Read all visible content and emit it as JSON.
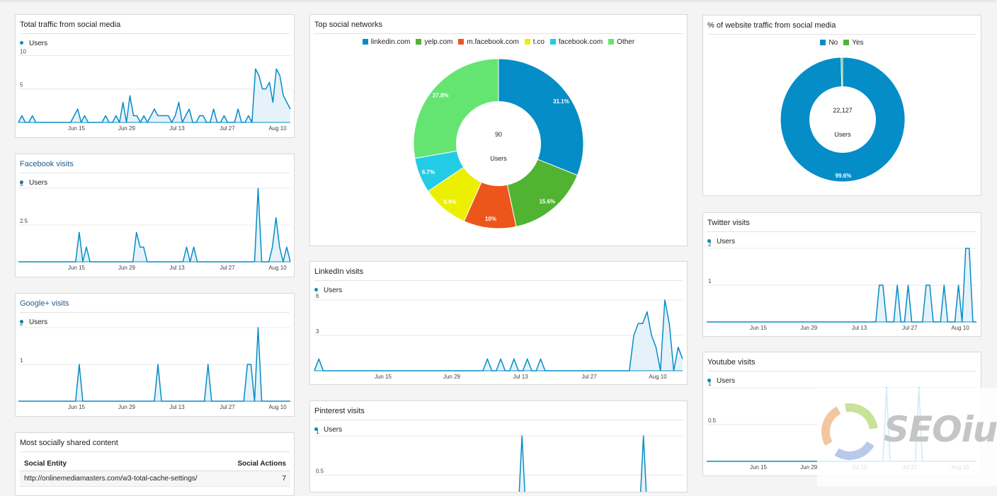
{
  "dashboard": {
    "widgets": {
      "total_traffic": {
        "title": "Total traffic from social media",
        "legend": "Users"
      },
      "facebook": {
        "title": "Facebook visits",
        "legend": "Users"
      },
      "googleplus": {
        "title": "Google+ visits",
        "legend": "Users"
      },
      "shared": {
        "title": "Most socially shared content",
        "col_entity": "Social Entity",
        "col_actions": "Social Actions",
        "rows": [
          {
            "entity": "http://onlinemediamasters.com/w3-total-cache-settings/",
            "actions": "7"
          }
        ]
      },
      "top_networks": {
        "title": "Top social networks"
      },
      "linkedin": {
        "title": "LinkedIn visits",
        "legend": "Users"
      },
      "pinterest": {
        "title": "Pinterest visits",
        "legend": "Users"
      },
      "pct_social": {
        "title": "% of website traffic from social media"
      },
      "twitter": {
        "title": "Twitter visits",
        "legend": "Users"
      },
      "youtube": {
        "title": "Youtube visits",
        "legend": "Users"
      }
    },
    "watermark": {
      "text": "SEOium"
    },
    "colors": {
      "line": "#058dc7",
      "fill": "#e6f2f9",
      "grid": "#e8e8e8"
    }
  },
  "chart_data": [
    {
      "id": "total_traffic",
      "type": "area",
      "title": "Total traffic from social media",
      "xlabels": [
        "Jun 15",
        "Jun 29",
        "Jul 13",
        "Jul 27",
        "Aug 10"
      ],
      "yticks": [
        "10",
        "5"
      ],
      "ylim": [
        0,
        11
      ],
      "series": [
        {
          "name": "Users",
          "values": [
            0,
            1,
            0,
            0,
            1,
            0,
            0,
            0,
            0,
            0,
            0,
            0,
            0,
            0,
            0,
            0,
            1,
            2,
            0,
            1,
            0,
            0,
            0,
            0,
            0,
            1,
            0,
            0,
            1,
            0,
            3,
            0,
            4,
            1,
            1,
            0,
            1,
            0,
            1,
            2,
            1,
            1,
            1,
            1,
            0,
            1,
            3,
            0,
            1,
            2,
            0,
            0,
            1,
            1,
            0,
            0,
            2,
            0,
            0,
            1,
            0,
            0,
            0,
            2,
            0,
            0,
            1,
            0,
            8,
            7,
            5,
            5,
            6,
            3,
            8,
            7,
            4,
            3,
            2
          ]
        }
      ]
    },
    {
      "id": "facebook",
      "type": "area",
      "title": "Facebook visits",
      "xlabels": [
        "Jun 15",
        "Jun 29",
        "Jul 13",
        "Jul 27",
        "Aug 10"
      ],
      "yticks": [
        "5",
        "2.5"
      ],
      "ylim": [
        0,
        5
      ],
      "series": [
        {
          "name": "Users",
          "values": [
            0,
            0,
            0,
            0,
            0,
            0,
            0,
            0,
            0,
            0,
            0,
            0,
            0,
            0,
            0,
            0,
            0,
            2,
            0,
            1,
            0,
            0,
            0,
            0,
            0,
            0,
            0,
            0,
            0,
            0,
            0,
            0,
            0,
            2,
            1,
            1,
            0,
            0,
            0,
            0,
            0,
            0,
            0,
            0,
            0,
            0,
            0,
            1,
            0,
            1,
            0,
            0,
            0,
            0,
            0,
            0,
            0,
            0,
            0,
            0,
            0,
            0,
            0,
            0,
            0,
            0,
            0,
            5,
            0,
            0,
            0,
            1,
            3,
            1,
            0,
            1,
            0
          ]
        }
      ]
    },
    {
      "id": "googleplus",
      "type": "area",
      "title": "Google+ visits",
      "xlabels": [
        "Jun 15",
        "Jun 29",
        "Jul 13",
        "Jul 27",
        "Aug 10"
      ],
      "yticks": [
        "2",
        "1"
      ],
      "ylim": [
        0,
        2
      ],
      "series": [
        {
          "name": "Users",
          "values": [
            0,
            0,
            0,
            0,
            0,
            0,
            0,
            0,
            0,
            0,
            0,
            0,
            0,
            0,
            0,
            0,
            0,
            1,
            0,
            0,
            0,
            0,
            0,
            0,
            0,
            0,
            0,
            0,
            0,
            0,
            0,
            0,
            0,
            0,
            0,
            0,
            0,
            0,
            0,
            1,
            0,
            0,
            0,
            0,
            0,
            0,
            0,
            0,
            0,
            0,
            0,
            0,
            0,
            1,
            0,
            0,
            0,
            0,
            0,
            0,
            0,
            0,
            0,
            0,
            1,
            1,
            0,
            2,
            0,
            0,
            0,
            0,
            0,
            0,
            0,
            0,
            0
          ]
        }
      ]
    },
    {
      "id": "linkedin",
      "type": "area",
      "title": "LinkedIn visits",
      "xlabels": [
        "Jun 15",
        "Jun 29",
        "Jul 13",
        "Jul 27",
        "Aug 10"
      ],
      "yticks": [
        "6",
        "3"
      ],
      "ylim": [
        0,
        6
      ],
      "series": [
        {
          "name": "Users",
          "values": [
            0,
            1,
            0,
            0,
            0,
            0,
            0,
            0,
            0,
            0,
            0,
            0,
            0,
            0,
            0,
            0,
            0,
            0,
            0,
            0,
            0,
            0,
            0,
            0,
            0,
            0,
            0,
            0,
            0,
            0,
            0,
            0,
            0,
            0,
            0,
            0,
            0,
            0,
            0,
            1,
            0,
            0,
            1,
            0,
            0,
            1,
            0,
            0,
            1,
            0,
            0,
            1,
            0,
            0,
            0,
            0,
            0,
            0,
            0,
            0,
            0,
            0,
            0,
            0,
            0,
            0,
            0,
            0,
            0,
            0,
            0,
            0,
            3,
            4,
            4,
            5,
            3,
            2,
            0,
            6,
            4,
            0,
            2,
            1
          ]
        }
      ]
    },
    {
      "id": "pinterest",
      "type": "area",
      "title": "Pinterest visits",
      "xlabels": [],
      "yticks": [
        "1",
        "0.5"
      ],
      "ylim": [
        0,
        1
      ],
      "series": [
        {
          "name": "Users",
          "values": [
            0,
            0,
            0,
            0,
            0,
            0,
            0,
            0,
            0,
            0,
            0,
            0,
            0,
            0,
            0,
            0,
            0,
            0,
            0,
            0,
            0,
            0,
            0,
            0,
            0,
            0,
            0,
            0,
            0,
            0,
            0,
            0,
            0,
            0,
            0,
            0,
            0,
            0,
            0,
            0,
            0,
            0,
            0,
            0,
            0,
            0,
            0,
            0,
            0,
            0,
            0,
            0,
            0,
            1,
            0,
            0,
            0,
            0,
            0,
            0,
            0,
            0,
            0,
            0,
            0,
            0,
            0,
            0,
            0,
            0,
            0,
            0,
            0,
            0,
            0,
            0,
            0,
            0,
            0,
            0,
            0,
            0,
            0,
            0,
            1,
            0,
            0,
            0,
            0,
            0,
            0,
            0,
            0,
            0,
            0
          ]
        }
      ]
    },
    {
      "id": "twitter",
      "type": "area",
      "title": "Twitter visits",
      "xlabels": [
        "Jun 15",
        "Jun 29",
        "Jul 13",
        "Jul 27",
        "Aug 10"
      ],
      "yticks": [
        "2",
        "1"
      ],
      "ylim": [
        0,
        2
      ],
      "series": [
        {
          "name": "Users",
          "values": [
            0,
            0,
            0,
            0,
            0,
            0,
            0,
            0,
            0,
            0,
            0,
            0,
            0,
            0,
            0,
            0,
            0,
            0,
            0,
            0,
            0,
            0,
            0,
            0,
            0,
            0,
            0,
            0,
            0,
            0,
            0,
            0,
            0,
            0,
            0,
            0,
            0,
            0,
            0,
            0,
            0,
            0,
            0,
            0,
            0,
            0,
            0,
            0,
            1,
            1,
            0,
            0,
            0,
            1,
            0,
            0,
            1,
            0,
            0,
            0,
            0,
            1,
            1,
            0,
            0,
            0,
            1,
            0,
            0,
            0,
            1,
            0,
            2,
            2,
            0,
            0
          ]
        }
      ]
    },
    {
      "id": "youtube",
      "type": "area",
      "title": "Youtube visits",
      "xlabels": [
        "Jun 15",
        "Jun 29",
        "Jul 13",
        "Jul 27",
        "Aug 10"
      ],
      "yticks": [
        "1",
        "0.5"
      ],
      "ylim": [
        0,
        1
      ],
      "series": [
        {
          "name": "Users",
          "values": [
            0,
            0,
            0,
            0,
            0,
            0,
            0,
            0,
            0,
            0,
            0,
            0,
            0,
            0,
            0,
            0,
            0,
            0,
            0,
            0,
            0,
            0,
            0,
            0,
            0,
            0,
            0,
            0,
            0,
            0,
            0,
            0,
            0,
            0,
            0,
            0,
            0,
            0,
            0,
            0,
            0,
            0,
            0,
            0,
            0,
            0,
            0,
            0,
            0,
            0,
            1,
            0,
            0,
            0,
            0,
            0,
            0,
            0,
            0,
            1,
            0,
            0,
            0,
            0,
            0,
            0,
            0,
            0,
            0,
            0,
            0,
            0,
            0,
            0,
            0,
            0
          ]
        }
      ]
    },
    {
      "id": "top_networks",
      "type": "pie",
      "title": "Top social networks",
      "center_value": "90",
      "center_label": "Users",
      "slices": [
        {
          "label": "linkedin.com",
          "value": 31.1,
          "display": "31.1%",
          "color": "#058dc7"
        },
        {
          "label": "yelp.com",
          "value": 15.6,
          "display": "15.6%",
          "color": "#50b432"
        },
        {
          "label": "m.facebook.com",
          "value": 10,
          "display": "10%",
          "color": "#ed561b"
        },
        {
          "label": "t.co",
          "value": 8.9,
          "display": "8.9%",
          "color": "#edef00"
        },
        {
          "label": "facebook.com",
          "value": 6.7,
          "display": "6.7%",
          "color": "#24cbe5"
        },
        {
          "label": "Other",
          "value": 27.8,
          "display": "27.8%",
          "color": "#64e572"
        }
      ]
    },
    {
      "id": "pct_social",
      "type": "pie",
      "title": "% of website traffic from social media",
      "center_value": "22,127",
      "center_label": "Users",
      "slices": [
        {
          "label": "No",
          "value": 99.6,
          "display": "99.6%",
          "color": "#058dc7"
        },
        {
          "label": "Yes",
          "value": 0.4,
          "display": "",
          "color": "#50b432"
        }
      ]
    }
  ]
}
